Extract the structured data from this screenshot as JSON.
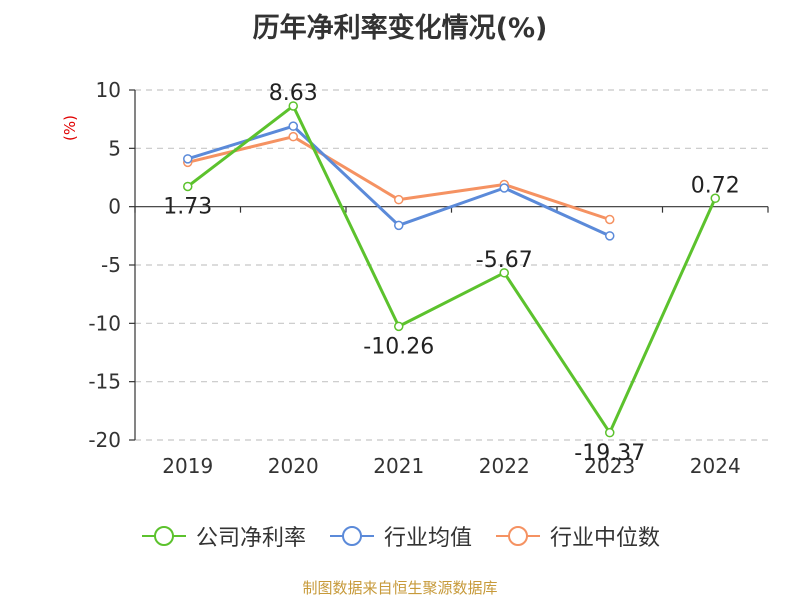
{
  "title": "历年净利率变化情况(%)",
  "unit_label": "(%)",
  "source": "制图数据来自恒生聚源数据库",
  "chart_data": {
    "type": "line",
    "title": "历年净利率变化情况(%)",
    "ylabel": "(%)",
    "xlabel": "",
    "categories": [
      "2019",
      "2020",
      "2021",
      "2022",
      "2023",
      "2024"
    ],
    "ylim": [
      -20,
      10
    ],
    "yticks": [
      10,
      5,
      0,
      -5,
      -10,
      -15,
      -20
    ],
    "grid": true,
    "legend_position": "bottom",
    "series": [
      {
        "name": "公司净利率",
        "color": "#5cc22d",
        "values": [
          1.73,
          8.63,
          -10.26,
          -5.67,
          -19.37,
          0.72
        ],
        "labels": [
          "1.73",
          "8.63",
          "-10.26",
          "-5.67",
          "-19.37",
          "0.72"
        ]
      },
      {
        "name": "行业均值",
        "color": "#5b8ad9",
        "values": [
          4.1,
          6.9,
          -1.6,
          1.6,
          -2.5,
          null
        ]
      },
      {
        "name": "行业中位数",
        "color": "#f59262",
        "values": [
          3.8,
          6.0,
          0.6,
          1.9,
          -1.1,
          null
        ]
      }
    ]
  }
}
